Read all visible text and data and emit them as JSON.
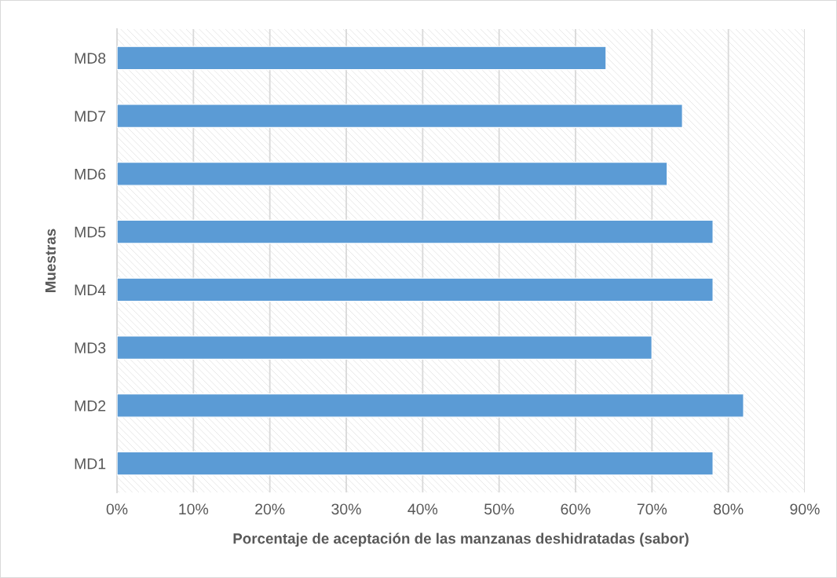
{
  "chart_data": {
    "type": "bar",
    "orientation": "horizontal",
    "xlabel": "Porcentaje de aceptación de las manzanas deshidratadas (sabor)",
    "ylabel": "Muestras",
    "categories": [
      "MD8",
      "MD7",
      "MD6",
      "MD5",
      "MD4",
      "MD3",
      "MD2",
      "MD1"
    ],
    "values": [
      64,
      74,
      72,
      78,
      78,
      70,
      82,
      78
    ],
    "color": "#5b9bd5",
    "xlim": [
      0,
      90
    ],
    "xticks": [
      {
        "value": 0,
        "label": "0%"
      },
      {
        "value": 10,
        "label": "10%"
      },
      {
        "value": 20,
        "label": "20%"
      },
      {
        "value": 30,
        "label": "30%"
      },
      {
        "value": 40,
        "label": "40%"
      },
      {
        "value": 50,
        "label": "50%"
      },
      {
        "value": 60,
        "label": "60%"
      },
      {
        "value": 70,
        "label": "70%"
      },
      {
        "value": 80,
        "label": "80%"
      },
      {
        "value": 90,
        "label": "90%"
      }
    ],
    "grid": "x",
    "legend": false
  }
}
